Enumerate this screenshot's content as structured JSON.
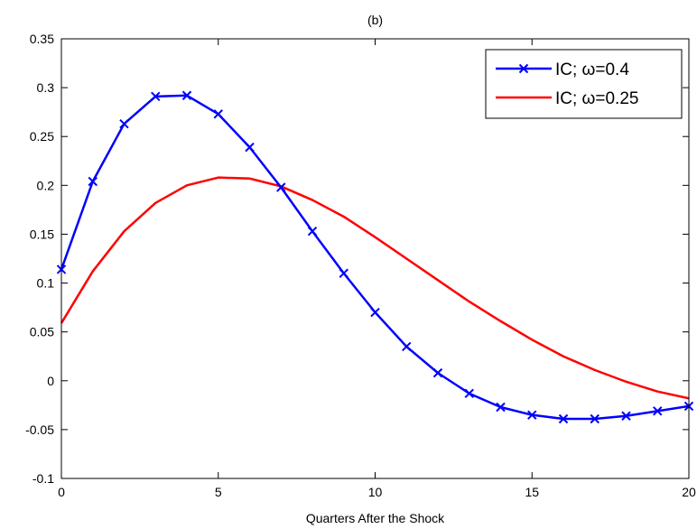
{
  "chart_data": {
    "type": "line",
    "title": "(b)",
    "xlabel": "Quarters After the Shock",
    "ylabel": "",
    "xlim": [
      0,
      20
    ],
    "ylim": [
      -0.1,
      0.35
    ],
    "xticks": [
      0,
      5,
      10,
      15,
      20
    ],
    "yticks": [
      -0.1,
      -0.05,
      0,
      0.05,
      0.1,
      0.15,
      0.2,
      0.25,
      0.3,
      0.35
    ],
    "xtick_labels": [
      "0",
      "5",
      "10",
      "15",
      "20"
    ],
    "ytick_labels": [
      "-0.1",
      "-0.05",
      "0",
      "0.05",
      "0.1",
      "0.15",
      "0.2",
      "0.25",
      "0.3",
      "0.35"
    ],
    "grid": false,
    "legend_position": "top-right",
    "x": [
      0,
      1,
      2,
      3,
      4,
      5,
      6,
      7,
      8,
      9,
      10,
      11,
      12,
      13,
      14,
      15,
      16,
      17,
      18,
      19,
      20
    ],
    "series": [
      {
        "name": "IC; ω=0.4",
        "color": "#0000ff",
        "marker": "x",
        "values": [
          0.114,
          0.204,
          0.263,
          0.291,
          0.292,
          0.273,
          0.239,
          0.198,
          0.153,
          0.11,
          0.07,
          0.035,
          0.008,
          -0.013,
          -0.027,
          -0.035,
          -0.039,
          -0.039,
          -0.036,
          -0.031,
          -0.026
        ]
      },
      {
        "name": "IC; ω=0.25",
        "color": "#ff0000",
        "marker": "none",
        "values": [
          0.059,
          0.112,
          0.153,
          0.182,
          0.2,
          0.208,
          0.207,
          0.199,
          0.185,
          0.168,
          0.147,
          0.125,
          0.103,
          0.081,
          0.061,
          0.042,
          0.025,
          0.011,
          -0.001,
          -0.011,
          -0.018
        ]
      }
    ]
  }
}
